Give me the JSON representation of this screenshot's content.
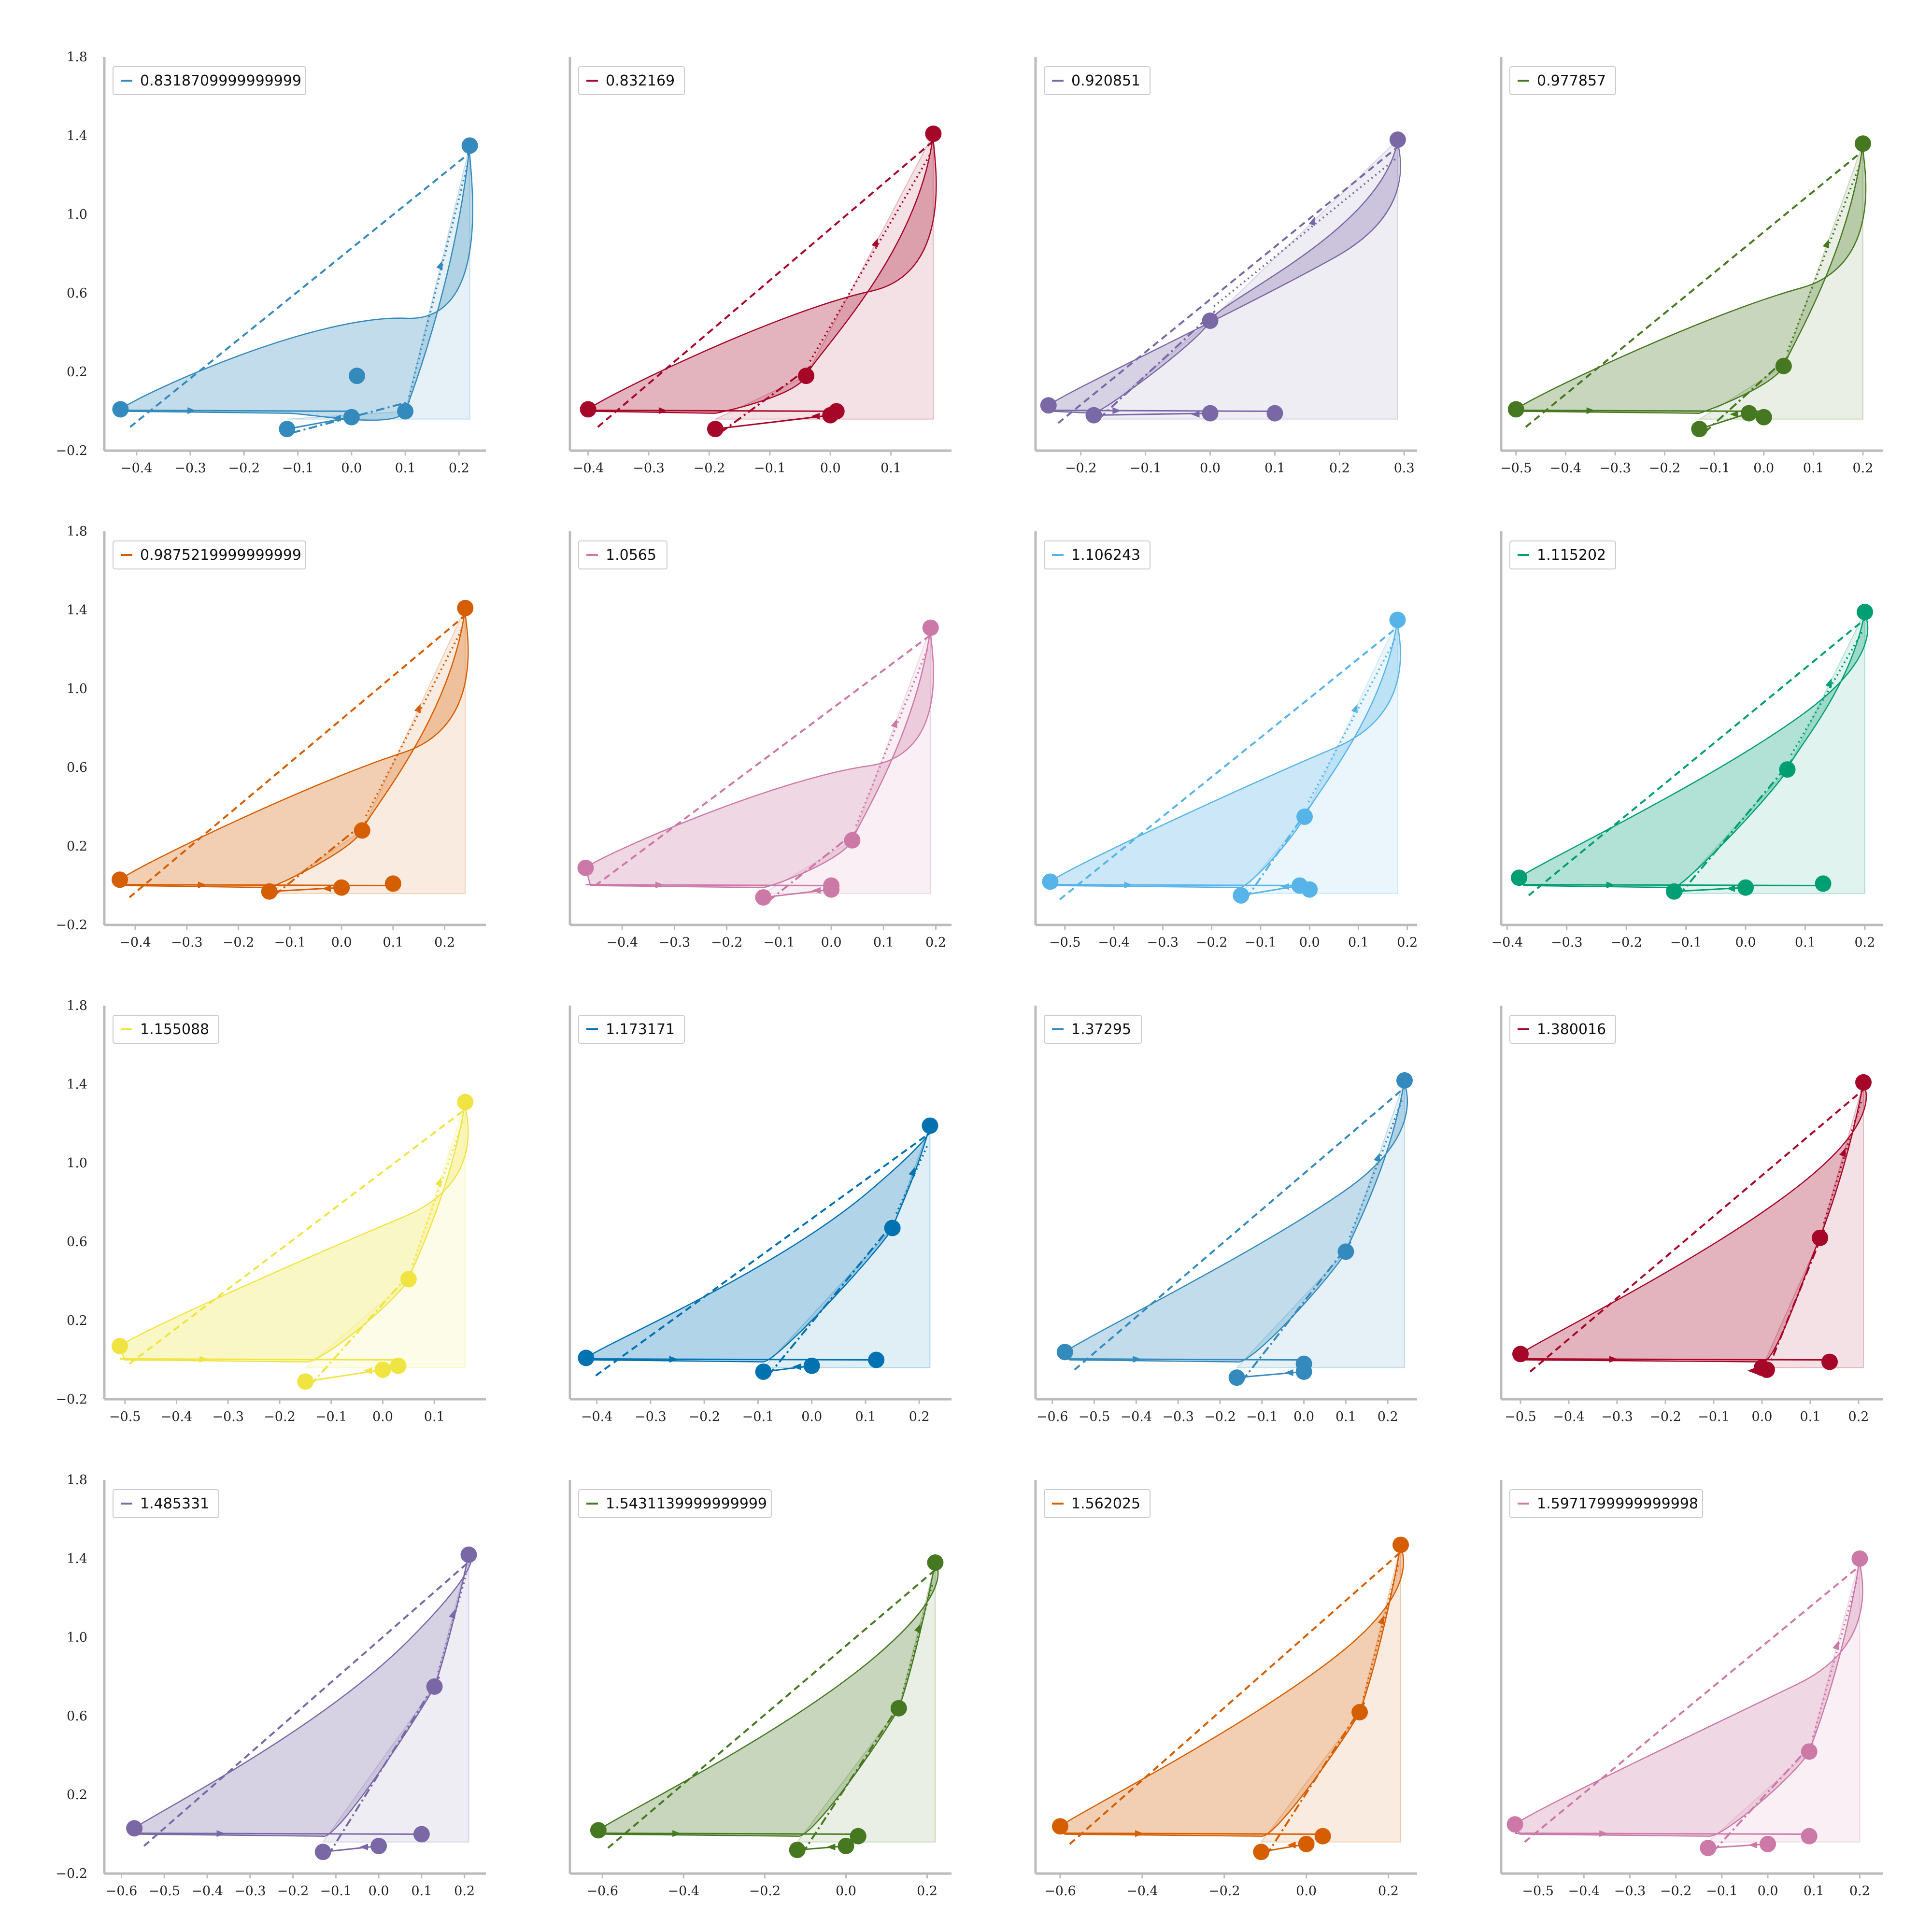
{
  "chart_data": [
    {
      "type": "line",
      "legend": "0.8318709999999999",
      "color": "#348ABD",
      "legend_position": "top-left",
      "xticks": [
        "−0.4",
        "−0.3",
        "−0.2",
        "−0.1",
        "0.0",
        "0.1",
        "0.2"
      ],
      "xtick_values": [
        -0.4,
        -0.3,
        -0.2,
        -0.1,
        0.0,
        0.1,
        0.2
      ],
      "xlim": [
        -0.46,
        0.25
      ],
      "yticks": [
        "−0.2",
        "0.2",
        "0.6",
        "1.0",
        "1.4",
        "1.8"
      ],
      "ylim": [
        -0.2,
        1.8
      ],
      "grid": false,
      "key_points": [
        [
          -0.43,
          0.01
        ],
        [
          -0.12,
          -0.09
        ],
        [
          0.0,
          -0.03
        ],
        [
          0.01,
          0.18
        ],
        [
          0.1,
          0.0
        ],
        [
          0.22,
          1.35
        ]
      ]
    },
    {
      "type": "line",
      "legend": "0.832169",
      "color": "#A60628",
      "legend_position": "top-left",
      "xticks": [
        "−0.4",
        "−0.3",
        "−0.2",
        "−0.1",
        "0.0",
        "0.1"
      ],
      "xtick_values": [
        -0.4,
        -0.3,
        -0.2,
        -0.1,
        0.0,
        0.1
      ],
      "xlim": [
        -0.43,
        0.2
      ],
      "yticks": [],
      "ylim": [
        -0.2,
        1.8
      ],
      "grid": false,
      "key_points": [
        [
          -0.4,
          0.01
        ],
        [
          -0.19,
          -0.09
        ],
        [
          0.0,
          -0.02
        ],
        [
          0.01,
          0.0
        ],
        [
          -0.04,
          0.18
        ],
        [
          0.17,
          1.41
        ]
      ]
    },
    {
      "type": "line",
      "legend": "0.920851",
      "color": "#7A68A6",
      "legend_position": "top-left",
      "xticks": [
        "−0.2",
        "−0.1",
        "0.0",
        "0.1",
        "0.2",
        "0.3"
      ],
      "xtick_values": [
        -0.2,
        -0.1,
        0.0,
        0.1,
        0.2,
        0.3
      ],
      "xlim": [
        -0.27,
        0.32
      ],
      "yticks": [],
      "ylim": [
        -0.2,
        1.8
      ],
      "grid": false,
      "key_points": [
        [
          -0.25,
          0.03
        ],
        [
          -0.18,
          -0.02
        ],
        [
          0.0,
          -0.01
        ],
        [
          0.1,
          -0.01
        ],
        [
          0.0,
          0.46
        ],
        [
          0.29,
          1.38
        ]
      ]
    },
    {
      "type": "line",
      "legend": "0.977857",
      "color": "#467821",
      "legend_position": "top-left",
      "xticks": [
        "−0.5",
        "−0.4",
        "−0.3",
        "−0.2",
        "−0.1",
        "0.0",
        "0.1",
        "0.2"
      ],
      "xtick_values": [
        -0.5,
        -0.4,
        -0.3,
        -0.2,
        -0.1,
        0.0,
        0.1,
        0.2
      ],
      "xlim": [
        -0.53,
        0.24
      ],
      "yticks": [],
      "ylim": [
        -0.2,
        1.8
      ],
      "grid": false,
      "key_points": [
        [
          -0.5,
          0.01
        ],
        [
          -0.13,
          -0.09
        ],
        [
          -0.03,
          -0.01
        ],
        [
          0.0,
          -0.03
        ],
        [
          0.04,
          0.23
        ],
        [
          0.2,
          1.36
        ]
      ]
    },
    {
      "type": "line",
      "legend": "0.9875219999999999",
      "color": "#D55E00",
      "legend_position": "top-left",
      "xticks": [
        "−0.4",
        "−0.3",
        "−0.2",
        "−0.1",
        "0.0",
        "0.1",
        "0.2"
      ],
      "xtick_values": [
        -0.4,
        -0.3,
        -0.2,
        -0.1,
        0.0,
        0.1,
        0.2
      ],
      "xlim": [
        -0.46,
        0.28
      ],
      "yticks": [
        "−0.2",
        "0.2",
        "0.6",
        "1.0",
        "1.4",
        "1.8"
      ],
      "ylim": [
        -0.2,
        1.8
      ],
      "grid": false,
      "key_points": [
        [
          -0.43,
          0.03
        ],
        [
          -0.14,
          -0.03
        ],
        [
          0.0,
          -0.01
        ],
        [
          0.1,
          0.01
        ],
        [
          0.04,
          0.28
        ],
        [
          0.24,
          1.41
        ]
      ]
    },
    {
      "type": "line",
      "legend": "1.0565",
      "color": "#CC79A7",
      "legend_position": "top-left",
      "xticks": [
        "−0.4",
        "−0.3",
        "−0.2",
        "−0.1",
        "0.0",
        "0.1",
        "0.2"
      ],
      "xtick_values": [
        -0.4,
        -0.3,
        -0.2,
        -0.1,
        0.0,
        0.1,
        0.2
      ],
      "xlim": [
        -0.5,
        0.23
      ],
      "yticks": [],
      "ylim": [
        -0.2,
        1.8
      ],
      "grid": false,
      "key_points": [
        [
          -0.47,
          0.09
        ],
        [
          -0.13,
          -0.06
        ],
        [
          0.0,
          -0.02
        ],
        [
          0.0,
          0.0
        ],
        [
          0.04,
          0.23
        ],
        [
          0.19,
          1.31
        ]
      ]
    },
    {
      "type": "line",
      "legend": "1.106243",
      "color": "#56B4E9",
      "legend_position": "top-left",
      "xticks": [
        "−0.5",
        "−0.4",
        "−0.3",
        "−0.2",
        "−0.1",
        "0.0",
        "0.1",
        "0.2"
      ],
      "xtick_values": [
        -0.5,
        -0.4,
        -0.3,
        -0.2,
        -0.1,
        0.0,
        0.1,
        0.2
      ],
      "xlim": [
        -0.56,
        0.22
      ],
      "yticks": [],
      "ylim": [
        -0.2,
        1.8
      ],
      "grid": false,
      "key_points": [
        [
          -0.53,
          0.02
        ],
        [
          -0.14,
          -0.05
        ],
        [
          -0.02,
          0.0
        ],
        [
          0.0,
          -0.02
        ],
        [
          -0.01,
          0.35
        ],
        [
          0.18,
          1.35
        ]
      ]
    },
    {
      "type": "line",
      "legend": "1.115202",
      "color": "#009E73",
      "legend_position": "top-left",
      "xticks": [
        "−0.4",
        "−0.3",
        "−0.2",
        "−0.1",
        "0.0",
        "0.1",
        "0.2"
      ],
      "xtick_values": [
        -0.4,
        -0.3,
        -0.2,
        -0.1,
        0.0,
        0.1,
        0.2
      ],
      "xlim": [
        -0.41,
        0.23
      ],
      "yticks": [],
      "ylim": [
        -0.2,
        1.8
      ],
      "grid": false,
      "key_points": [
        [
          -0.38,
          0.04
        ],
        [
          -0.12,
          -0.03
        ],
        [
          0.0,
          -0.01
        ],
        [
          0.13,
          0.01
        ],
        [
          0.07,
          0.59
        ],
        [
          0.2,
          1.39
        ]
      ]
    },
    {
      "type": "line",
      "legend": "1.155088",
      "color": "#F0E442",
      "legend_position": "top-left",
      "xticks": [
        "−0.5",
        "−0.4",
        "−0.3",
        "−0.2",
        "−0.1",
        "0.0",
        "0.1"
      ],
      "xtick_values": [
        -0.5,
        -0.4,
        -0.3,
        -0.2,
        -0.1,
        0.0,
        0.1
      ],
      "xlim": [
        -0.54,
        0.2
      ],
      "yticks": [
        "−0.2",
        "0.2",
        "0.6",
        "1.0",
        "1.4",
        "1.8"
      ],
      "ylim": [
        -0.2,
        1.8
      ],
      "grid": false,
      "key_points": [
        [
          -0.51,
          0.07
        ],
        [
          -0.15,
          -0.11
        ],
        [
          0.0,
          -0.05
        ],
        [
          0.03,
          -0.03
        ],
        [
          0.05,
          0.41
        ],
        [
          0.16,
          1.31
        ]
      ]
    },
    {
      "type": "line",
      "legend": "1.173171",
      "color": "#0072B2",
      "legend_position": "top-left",
      "xticks": [
        "−0.4",
        "−0.3",
        "−0.2",
        "−0.1",
        "0.0",
        "0.1",
        "0.2"
      ],
      "xtick_values": [
        -0.4,
        -0.3,
        -0.2,
        -0.1,
        0.0,
        0.1,
        0.2
      ],
      "xlim": [
        -0.45,
        0.26
      ],
      "yticks": [],
      "ylim": [
        -0.2,
        1.8
      ],
      "grid": false,
      "key_points": [
        [
          -0.42,
          0.01
        ],
        [
          -0.09,
          -0.06
        ],
        [
          0.0,
          -0.03
        ],
        [
          0.12,
          0.0
        ],
        [
          0.15,
          0.67
        ],
        [
          0.22,
          1.19
        ]
      ]
    },
    {
      "type": "line",
      "legend": "1.37295",
      "color": "#348ABD",
      "legend_position": "top-left",
      "xticks": [
        "−0.6",
        "−0.5",
        "−0.4",
        "−0.3",
        "−0.2",
        "−0.1",
        "0.0",
        "0.1",
        "0.2"
      ],
      "xtick_values": [
        -0.6,
        -0.5,
        -0.4,
        -0.3,
        -0.2,
        -0.1,
        0.0,
        0.1,
        0.2
      ],
      "xlim": [
        -0.64,
        0.27
      ],
      "yticks": [],
      "ylim": [
        -0.2,
        1.8
      ],
      "grid": false,
      "key_points": [
        [
          -0.57,
          0.04
        ],
        [
          -0.16,
          -0.09
        ],
        [
          0.0,
          -0.06
        ],
        [
          0.0,
          -0.02
        ],
        [
          0.1,
          0.55
        ],
        [
          0.24,
          1.42
        ]
      ]
    },
    {
      "type": "line",
      "legend": "1.380016",
      "color": "#A60628",
      "legend_position": "top-left",
      "xticks": [
        "−0.5",
        "−0.4",
        "−0.3",
        "−0.2",
        "−0.1",
        "0.0",
        "0.1",
        "0.2"
      ],
      "xtick_values": [
        -0.5,
        -0.4,
        -0.3,
        -0.2,
        -0.1,
        0.0,
        0.1,
        0.2
      ],
      "xlim": [
        -0.54,
        0.25
      ],
      "yticks": [],
      "ylim": [
        -0.2,
        1.8
      ],
      "grid": false,
      "key_points": [
        [
          -0.5,
          0.03
        ],
        [
          0.0,
          -0.04
        ],
        [
          0.01,
          -0.05
        ],
        [
          0.14,
          -0.01
        ],
        [
          0.12,
          0.62
        ],
        [
          0.21,
          1.41
        ]
      ]
    },
    {
      "type": "line",
      "legend": "1.485331",
      "color": "#7A68A6",
      "legend_position": "top-left",
      "xticks": [
        "−0.6",
        "−0.5",
        "−0.4",
        "−0.3",
        "−0.2",
        "−0.1",
        "0.0",
        "0.1",
        "0.2"
      ],
      "xtick_values": [
        -0.6,
        -0.5,
        -0.4,
        -0.3,
        -0.2,
        -0.1,
        0.0,
        0.1,
        0.2
      ],
      "xlim": [
        -0.64,
        0.25
      ],
      "yticks": [
        "−0.2",
        "0.2",
        "0.6",
        "1.0",
        "1.4",
        "1.8"
      ],
      "ylim": [
        -0.2,
        1.8
      ],
      "grid": false,
      "key_points": [
        [
          -0.57,
          0.03
        ],
        [
          -0.13,
          -0.09
        ],
        [
          0.0,
          -0.06
        ],
        [
          0.1,
          0.0
        ],
        [
          0.13,
          0.75
        ],
        [
          0.21,
          1.42
        ]
      ]
    },
    {
      "type": "line",
      "legend": "1.5431139999999999",
      "color": "#467821",
      "legend_position": "top-left",
      "xticks": [
        "−0.6",
        "−0.4",
        "−0.2",
        "0.0",
        "0.2"
      ],
      "xtick_values": [
        -0.6,
        -0.4,
        -0.2,
        0.0,
        0.2
      ],
      "xlim": [
        -0.68,
        0.26
      ],
      "yticks": [],
      "ylim": [
        -0.2,
        1.8
      ],
      "grid": false,
      "key_points": [
        [
          -0.61,
          0.02
        ],
        [
          -0.12,
          -0.08
        ],
        [
          0.0,
          -0.06
        ],
        [
          0.03,
          -0.01
        ],
        [
          0.13,
          0.64
        ],
        [
          0.22,
          1.38
        ]
      ]
    },
    {
      "type": "line",
      "legend": "1.562025",
      "color": "#D55E00",
      "legend_position": "top-left",
      "xticks": [
        "−0.6",
        "−0.4",
        "−0.2",
        "0.0",
        "0.2"
      ],
      "xtick_values": [
        -0.6,
        -0.4,
        -0.2,
        0.0,
        0.2
      ],
      "xlim": [
        -0.66,
        0.27
      ],
      "yticks": [],
      "ylim": [
        -0.2,
        1.8
      ],
      "grid": false,
      "key_points": [
        [
          -0.6,
          0.04
        ],
        [
          -0.11,
          -0.09
        ],
        [
          0.0,
          -0.05
        ],
        [
          0.04,
          -0.01
        ],
        [
          0.13,
          0.62
        ],
        [
          0.23,
          1.47
        ]
      ]
    },
    {
      "type": "line",
      "legend": "1.5971799999999998",
      "color": "#CC79A7",
      "legend_position": "top-left",
      "xticks": [
        "−0.5",
        "−0.4",
        "−0.3",
        "−0.2",
        "−0.1",
        "0.0",
        "0.1",
        "0.2"
      ],
      "xtick_values": [
        -0.5,
        -0.4,
        -0.3,
        -0.2,
        -0.1,
        0.0,
        0.1,
        0.2
      ],
      "xlim": [
        -0.58,
        0.25
      ],
      "yticks": [],
      "ylim": [
        -0.2,
        1.8
      ],
      "grid": false,
      "key_points": [
        [
          -0.55,
          0.05
        ],
        [
          -0.13,
          -0.07
        ],
        [
          0.0,
          -0.05
        ],
        [
          0.09,
          -0.01
        ],
        [
          0.09,
          0.42
        ],
        [
          0.2,
          1.4
        ]
      ]
    }
  ]
}
